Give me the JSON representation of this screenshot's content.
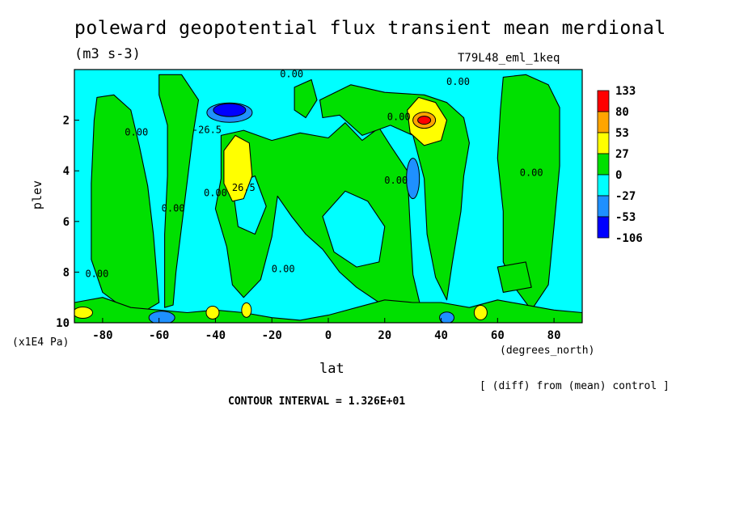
{
  "chart_data": {
    "type": "heatmap",
    "title": "poleward geopotential flux transient mean merdional",
    "units": "(m3 s-3)",
    "run_id": "T79L48_eml_1keq",
    "xlabel": "lat",
    "x_units": "(degrees_north)",
    "ylabel": "plev",
    "y_units": "(x1E4 Pa)",
    "note": "[ (diff) from (mean) control ]",
    "contour_interval": "CONTOUR INTERVAL = 1.326E+01",
    "xlim": [
      -90,
      90
    ],
    "ylim": [
      0,
      10
    ],
    "y_inverted": true,
    "x_ticks": [
      -80,
      -60,
      -40,
      -20,
      0,
      20,
      40,
      60,
      80
    ],
    "x_tick_labels": [
      "-80",
      "-60",
      "-40",
      "-20",
      "0",
      "20",
      "40",
      "60",
      "80"
    ],
    "y_ticks": [
      2,
      4,
      6,
      8,
      10
    ],
    "y_tick_labels": [
      "2",
      "4",
      "6",
      "8",
      "10"
    ],
    "colorbar": {
      "labels": [
        "133",
        "80",
        "53",
        "27",
        "0",
        "-27",
        "-53",
        "-106"
      ],
      "colors": [
        "#ff0000",
        "#ffa500",
        "#ffff00",
        "#00e000",
        "#00ffff",
        "#1e90ff",
        "#0000ff"
      ]
    },
    "contour_labels": [
      {
        "text": "0.00",
        "lon": -82,
        "plev": 8.2
      },
      {
        "text": "0.00",
        "lon": -68,
        "plev": 2.6
      },
      {
        "text": "0.00",
        "lon": -55,
        "plev": 5.6
      },
      {
        "text": "0.00",
        "lon": -40,
        "plev": 5.0
      },
      {
        "text": "0.00",
        "lon": -16,
        "plev": 8.0
      },
      {
        "text": "-26.5",
        "lon": -43,
        "plev": 2.5
      },
      {
        "text": "26.5",
        "lon": -30,
        "plev": 4.8
      },
      {
        "text": "0.00",
        "lon": 24,
        "plev": 4.5
      },
      {
        "text": "0.00",
        "lon": -13,
        "plev": 0.3
      },
      {
        "text": "0.00",
        "lon": 46,
        "plev": 0.6
      },
      {
        "text": "0.00",
        "lon": 25,
        "plev": 2.0
      },
      {
        "text": "0.00",
        "lon": 72,
        "plev": 4.2
      }
    ]
  }
}
